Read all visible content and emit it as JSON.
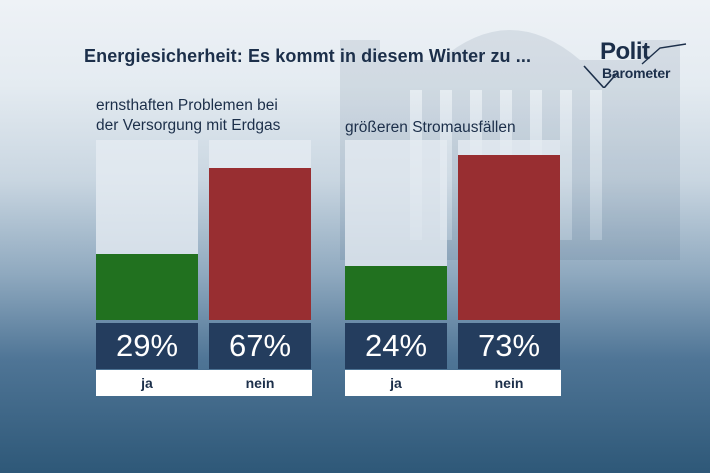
{
  "title": "Energiesicherheit: Es kommt in diesem Winter zu ...",
  "logo": {
    "line1": "Polit",
    "line2": "Barometer"
  },
  "colors": {
    "ja": "#21711f",
    "nein": "#982e31",
    "value_box": "#243d5e",
    "text": "#1c2f4a"
  },
  "chart_data": [
    {
      "type": "bar",
      "title_lines": [
        "ernsthaften Problemen bei",
        "der Versorgung mit Erdgas"
      ],
      "categories": [
        "ja",
        "nein"
      ],
      "values": [
        29,
        67
      ],
      "value_labels": [
        "29%",
        "67%"
      ],
      "ylim": [
        0,
        100
      ]
    },
    {
      "type": "bar",
      "title_lines": [
        "größeren Stromausfällen"
      ],
      "categories": [
        "ja",
        "nein"
      ],
      "values": [
        24,
        73
      ],
      "value_labels": [
        "24%",
        "73%"
      ],
      "ylim": [
        0,
        100
      ]
    }
  ]
}
